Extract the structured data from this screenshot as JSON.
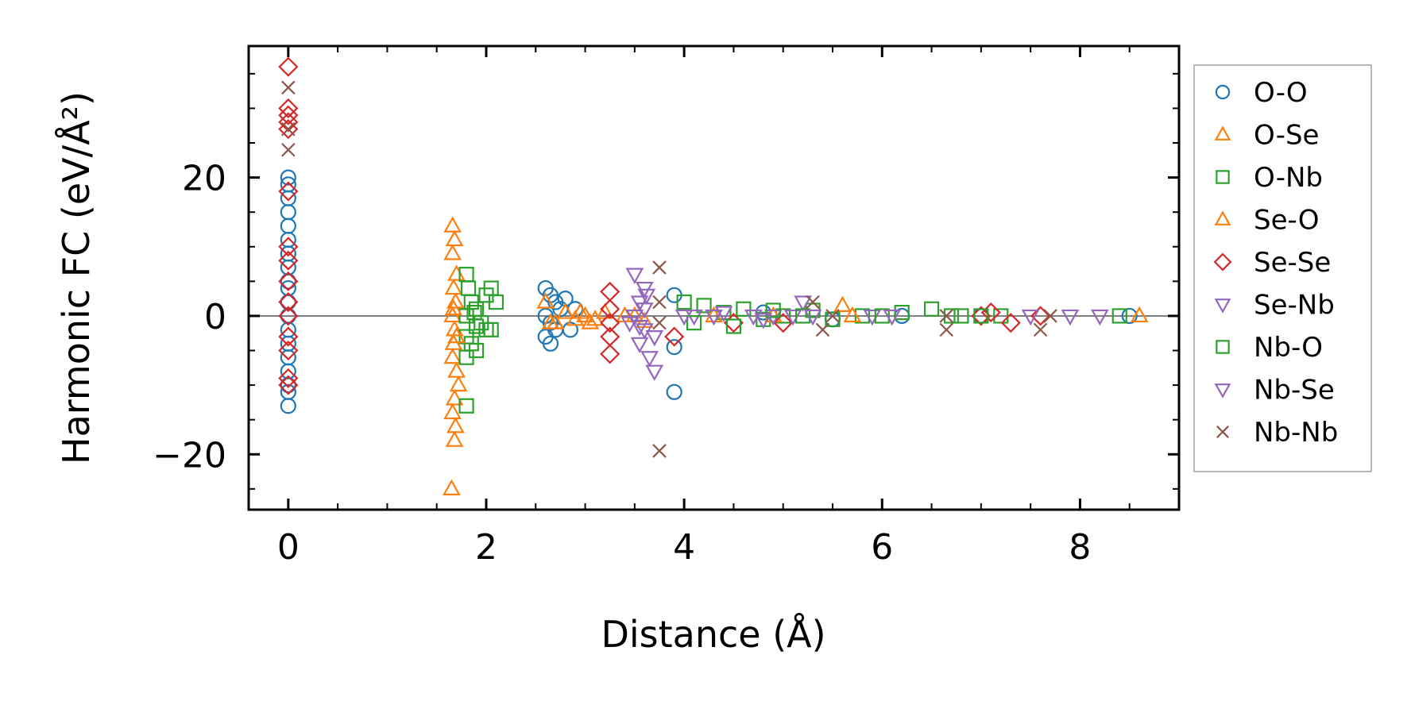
{
  "chart_data": {
    "type": "scatter",
    "title": "",
    "xlabel": "Distance (Å)",
    "ylabel": "Harmonic FC (eV/Å²)",
    "xlim": [
      -0.4,
      9.0
    ],
    "ylim": [
      -28,
      39
    ],
    "xticks": [
      0,
      2,
      4,
      6,
      8
    ],
    "xtick_labels": [
      "0",
      "2",
      "4",
      "6",
      "8"
    ],
    "yticks": [
      -20,
      0,
      20
    ],
    "ytick_labels": [
      "−20",
      "0",
      "20"
    ],
    "zero_line": 0,
    "legend_position": "outside-right",
    "series": [
      {
        "name": "O-O",
        "color": "#1f77b4",
        "marker": "circle",
        "points": [
          [
            0,
            20
          ],
          [
            0,
            19
          ],
          [
            0,
            17
          ],
          [
            0,
            15
          ],
          [
            0,
            13
          ],
          [
            0,
            11
          ],
          [
            0,
            9
          ],
          [
            0,
            7
          ],
          [
            0,
            5
          ],
          [
            0,
            4
          ],
          [
            0,
            2
          ],
          [
            0,
            0
          ],
          [
            0,
            -2
          ],
          [
            0,
            -4
          ],
          [
            0,
            -6
          ],
          [
            0,
            -8
          ],
          [
            0,
            -10
          ],
          [
            0,
            -11
          ],
          [
            0,
            -13
          ],
          [
            2.6,
            4
          ],
          [
            2.65,
            3
          ],
          [
            2.7,
            2
          ],
          [
            2.75,
            1
          ],
          [
            2.6,
            0
          ],
          [
            2.65,
            -1
          ],
          [
            2.7,
            -2
          ],
          [
            2.6,
            -3
          ],
          [
            2.65,
            -4
          ],
          [
            2.8,
            2.5
          ],
          [
            2.85,
            -2
          ],
          [
            2.9,
            1
          ],
          [
            3.9,
            3
          ],
          [
            3.9,
            -4.5
          ],
          [
            3.9,
            -11
          ],
          [
            4.8,
            0.5
          ],
          [
            5.5,
            -0.5
          ],
          [
            6.2,
            0
          ],
          [
            7.0,
            0
          ],
          [
            8.5,
            0
          ]
        ]
      },
      {
        "name": "O-Se",
        "color": "#ff7f0e",
        "marker": "triangle-up",
        "points": [
          [
            1.66,
            13
          ],
          [
            1.68,
            11
          ],
          [
            1.66,
            9
          ],
          [
            1.7,
            6
          ],
          [
            1.67,
            4
          ],
          [
            1.69,
            2
          ],
          [
            1.66,
            0
          ],
          [
            1.68,
            -2
          ],
          [
            1.67,
            -4
          ],
          [
            1.66,
            -6
          ],
          [
            1.7,
            -8
          ],
          [
            1.72,
            -10
          ],
          [
            1.68,
            -12
          ],
          [
            1.66,
            -14
          ],
          [
            1.69,
            -16
          ],
          [
            1.68,
            -18
          ],
          [
            1.65,
            -25
          ],
          [
            2.6,
            2
          ],
          [
            2.7,
            -1
          ],
          [
            2.8,
            0.5
          ],
          [
            2.9,
            -0.5
          ],
          [
            3.0,
            0
          ],
          [
            3.1,
            -0.5
          ],
          [
            3.4,
            0
          ],
          [
            3.6,
            -0.8
          ],
          [
            5.6,
            1.5
          ],
          [
            8.6,
            0
          ]
        ]
      },
      {
        "name": "O-Nb",
        "color": "#2ca02c",
        "marker": "square",
        "points": [
          [
            1.8,
            6
          ],
          [
            1.82,
            4
          ],
          [
            1.85,
            2
          ],
          [
            1.9,
            1
          ],
          [
            1.8,
            0
          ],
          [
            1.95,
            -1
          ],
          [
            2.0,
            -2
          ],
          [
            1.8,
            -3
          ],
          [
            1.85,
            -4
          ],
          [
            1.9,
            -5
          ],
          [
            1.8,
            -6
          ],
          [
            1.8,
            -13
          ],
          [
            2.05,
            4
          ],
          [
            2.1,
            2
          ],
          [
            2.05,
            -2
          ],
          [
            4.0,
            2
          ],
          [
            4.2,
            1.5
          ],
          [
            4.4,
            0.5
          ],
          [
            4.6,
            1
          ],
          [
            4.8,
            -0.5
          ],
          [
            5.0,
            0
          ],
          [
            5.3,
            0.8
          ],
          [
            5.8,
            0
          ],
          [
            6.2,
            0.5
          ],
          [
            6.5,
            1
          ],
          [
            6.8,
            0
          ],
          [
            7.2,
            0
          ],
          [
            8.4,
            0
          ]
        ]
      },
      {
        "name": "Se-O",
        "color": "#ff7f0e",
        "marker": "triangle-up",
        "points": [
          [
            1.67,
            1
          ],
          [
            1.7,
            -3
          ],
          [
            2.65,
            -1
          ],
          [
            2.95,
            0.5
          ],
          [
            3.05,
            -1
          ],
          [
            3.2,
            0.5
          ],
          [
            3.5,
            0
          ],
          [
            4.3,
            0
          ],
          [
            4.9,
            0
          ],
          [
            5.7,
            0
          ]
        ]
      },
      {
        "name": "Se-Se",
        "color": "#d62728",
        "marker": "diamond",
        "points": [
          [
            0,
            36
          ],
          [
            0,
            30
          ],
          [
            0,
            29
          ],
          [
            0,
            28
          ],
          [
            0,
            27
          ],
          [
            0,
            18
          ],
          [
            0,
            10
          ],
          [
            0,
            8
          ],
          [
            0,
            5
          ],
          [
            0,
            2
          ],
          [
            0,
            0
          ],
          [
            0,
            -3
          ],
          [
            0,
            -5
          ],
          [
            0,
            -9
          ],
          [
            0,
            -10
          ],
          [
            3.25,
            3.5
          ],
          [
            3.25,
            1
          ],
          [
            3.25,
            -1
          ],
          [
            3.25,
            -3
          ],
          [
            3.25,
            -5.5
          ],
          [
            3.9,
            -3
          ],
          [
            4.5,
            -1
          ],
          [
            5.0,
            -1
          ],
          [
            7.0,
            0
          ],
          [
            7.1,
            0.5
          ],
          [
            7.3,
            -1
          ],
          [
            7.6,
            0
          ]
        ]
      },
      {
        "name": "Se-Nb",
        "color": "#9467bd",
        "marker": "triangle-down",
        "points": [
          [
            3.5,
            6
          ],
          [
            3.6,
            4
          ],
          [
            3.55,
            2
          ],
          [
            3.5,
            0
          ],
          [
            3.6,
            -2
          ],
          [
            3.55,
            -4
          ],
          [
            3.65,
            -6
          ],
          [
            3.7,
            -8
          ],
          [
            3.45,
            -1
          ],
          [
            3.6,
            1
          ],
          [
            4.1,
            0
          ],
          [
            4.3,
            0
          ],
          [
            4.7,
            0
          ],
          [
            4.9,
            0
          ],
          [
            5.1,
            0
          ],
          [
            5.2,
            2
          ],
          [
            5.9,
            0
          ],
          [
            7.5,
            0
          ]
        ]
      },
      {
        "name": "Nb-O",
        "color": "#2ca02c",
        "marker": "square",
        "points": [
          [
            1.88,
            0.5
          ],
          [
            1.9,
            -1.5
          ],
          [
            2.0,
            3
          ],
          [
            4.1,
            -1
          ],
          [
            4.5,
            -1.5
          ],
          [
            4.9,
            0.8
          ],
          [
            5.2,
            0
          ],
          [
            5.5,
            -0.5
          ],
          [
            6.0,
            0
          ],
          [
            6.7,
            0
          ],
          [
            7.0,
            0
          ]
        ]
      },
      {
        "name": "Nb-Se",
        "color": "#9467bd",
        "marker": "triangle-down",
        "points": [
          [
            3.55,
            -1.5
          ],
          [
            3.62,
            3
          ],
          [
            3.7,
            -3
          ],
          [
            4.0,
            0
          ],
          [
            4.4,
            0.5
          ],
          [
            4.8,
            -0.5
          ],
          [
            5.3,
            0
          ],
          [
            6.1,
            0
          ],
          [
            7.9,
            0
          ],
          [
            8.2,
            0
          ]
        ]
      },
      {
        "name": "Nb-Nb",
        "color": "#8c564b",
        "marker": "x",
        "points": [
          [
            0,
            33
          ],
          [
            0,
            27
          ],
          [
            0,
            24
          ],
          [
            3.75,
            7
          ],
          [
            3.75,
            2
          ],
          [
            3.75,
            -1
          ],
          [
            3.75,
            -19.5
          ],
          [
            5.3,
            2
          ],
          [
            5.4,
            -2
          ],
          [
            5.5,
            0
          ],
          [
            6.65,
            0
          ],
          [
            6.65,
            -2
          ],
          [
            7.6,
            -2
          ],
          [
            7.7,
            0
          ]
        ]
      }
    ]
  }
}
